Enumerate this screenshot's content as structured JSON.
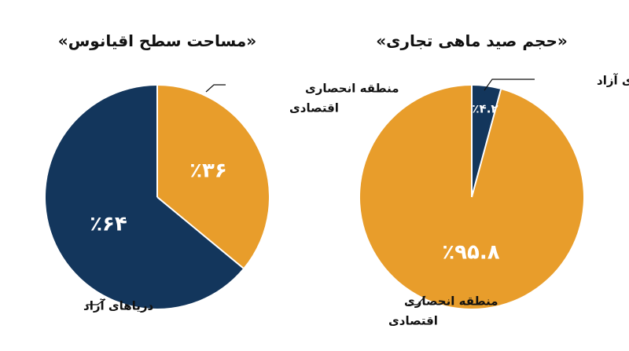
{
  "colors": {
    "navy": "#13365c",
    "orange": "#e89d2b",
    "text": "#111111"
  },
  "chart_data": [
    {
      "type": "pie",
      "title": "«مساحت سطح اقیانوس»",
      "slices": [
        {
          "label": "منطقه انحصاری اقتصادی",
          "label_lines": [
            "منطقه انحصاری",
            "اقتصادی"
          ],
          "value": 36,
          "value_label": "٪۳۶",
          "color": "#e89d2b"
        },
        {
          "label": "دریاهای آزاد",
          "label_lines": [
            "دریاهای آزاد"
          ],
          "value": 64,
          "value_label": "٪۶۴",
          "color": "#13365c"
        }
      ]
    },
    {
      "type": "pie",
      "title": "«حجم صید ماهی تجاری»",
      "slices": [
        {
          "label": "دریاهای آزاد",
          "label_lines": [
            "دریاهای آزاد"
          ],
          "value": 4.2,
          "value_label": "٪۴.۲",
          "color": "#13365c"
        },
        {
          "label": "منطقه انحصاری اقتصادی",
          "label_lines": [
            "منطقه انحصاری",
            "اقتصادی"
          ],
          "value": 95.8,
          "value_label": "٪۹۵.۸",
          "color": "#e89d2b"
        }
      ]
    }
  ]
}
